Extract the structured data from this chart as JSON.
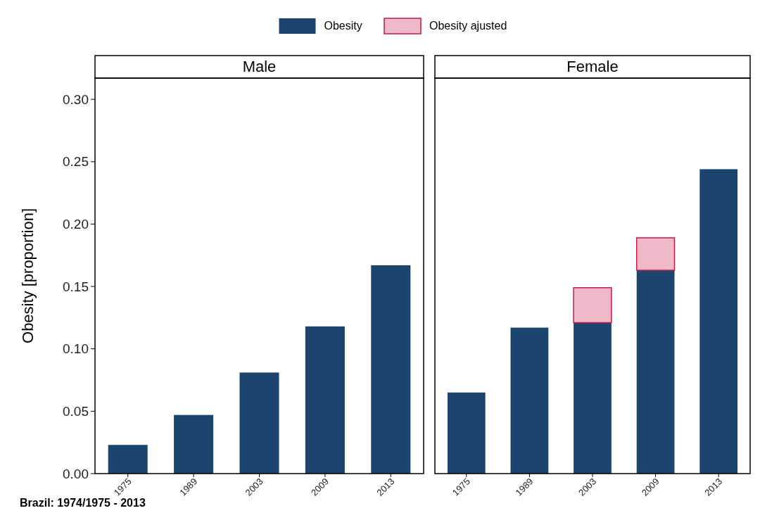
{
  "chart_data": [
    {
      "type": "bar",
      "title": "Male",
      "ylabel": "Obesity [proportion]",
      "categories": [
        "1975",
        "1989",
        "2003",
        "2009",
        "2013"
      ],
      "stacked": true,
      "ylim": [
        0,
        0.317
      ],
      "yticks": [
        {
          "value": 0,
          "label": "0.00"
        },
        {
          "value": 0.05,
          "label": "0.05"
        },
        {
          "value": 0.1,
          "label": "0.10"
        },
        {
          "value": 0.15,
          "label": "0.15"
        },
        {
          "value": 0.2,
          "label": "0.20"
        },
        {
          "value": 0.25,
          "label": "0.25"
        },
        {
          "value": 0.3,
          "label": "0.30"
        }
      ],
      "series": [
        {
          "color": "#1b456e",
          "values": [
            0.023,
            0.047,
            0.081,
            0.118,
            0.167
          ]
        }
      ],
      "annotations": [
        "Brazil: 1974/1975 - 2013"
      ]
    },
    {
      "type": "bar",
      "title": "Female",
      "categories": [
        "1975",
        "1989",
        "2003",
        "2009",
        "2013"
      ],
      "stacked": true,
      "ylim": [
        0,
        0.317
      ],
      "tick_labels": "x",
      "legend": "top",
      "series": [
        {
          "name": "Obesity",
          "color": "#1b456e",
          "values": [
            0.065,
            0.117,
            0.121,
            0.163,
            0.244
          ]
        },
        {
          "name": "Obesity ajusted",
          "color": "#efb9c8",
          "values": [
            null,
            null,
            0.028,
            0.026,
            null
          ]
        }
      ]
    }
  ]
}
